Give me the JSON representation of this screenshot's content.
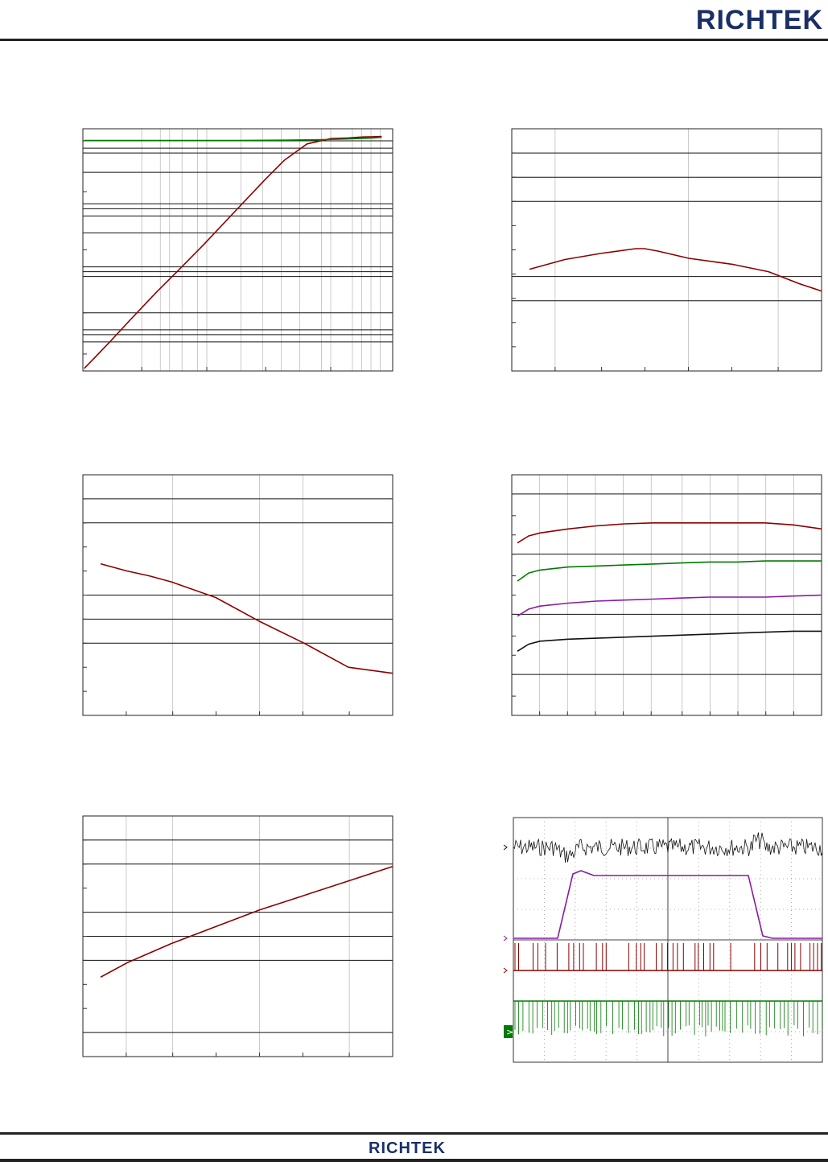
{
  "header": {
    "logo_text": "RICHTEK",
    "logo_color": "#1b2f66"
  },
  "footer": {
    "logo_text": "RICHTEK",
    "logo_color": "#1b2f66"
  },
  "colors": {
    "red": "#8b0000",
    "green": "#007a00",
    "purple": "#8a1aa0",
    "black": "#111111"
  },
  "chart_data": [
    {
      "type": "line",
      "title": "",
      "xlabel": "",
      "ylabel": "",
      "xscale": "log",
      "yscale": "log",
      "xlim": [
        1,
        100
      ],
      "ylim": [
        1,
        100
      ],
      "grid": true,
      "series": [
        {
          "color": "#8b0000",
          "x": [
            1.02,
            1.2,
            1.5,
            2,
            3,
            4,
            6,
            10,
            15,
            20,
            28,
            40,
            52,
            55,
            60,
            65,
            75,
            85
          ],
          "y": [
            1.05,
            1.3,
            1.75,
            2.6,
            4.5,
            6.5,
            11,
            22,
            38,
            55,
            75,
            83,
            84,
            84.5,
            85,
            85.5,
            86,
            86.5
          ]
        },
        {
          "color": "#007a00",
          "x": [
            1.02,
            2,
            4,
            10,
            20,
            30,
            45,
            60,
            75,
            85
          ],
          "y": [
            80,
            80,
            80,
            80,
            80.5,
            81,
            82,
            83,
            84,
            85
          ]
        }
      ]
    },
    {
      "type": "line",
      "title": "",
      "xlabel": "",
      "ylabel": "",
      "xlim": [
        0,
        7
      ],
      "ylim": [
        0,
        10
      ],
      "grid": true,
      "series": [
        {
          "color": "#8b0000",
          "x": [
            0.4,
            1.2,
            2.0,
            2.8,
            3.0,
            3.3,
            4.0,
            5.0,
            5.8,
            6.5,
            7.0
          ],
          "y": [
            4.2,
            4.6,
            4.85,
            5.05,
            5.05,
            4.95,
            4.65,
            4.4,
            4.1,
            3.6,
            3.3
          ]
        }
      ]
    },
    {
      "type": "line",
      "title": "",
      "xlabel": "",
      "ylabel": "",
      "xlim": [
        0,
        7
      ],
      "ylim": [
        0,
        10
      ],
      "grid": true,
      "series": [
        {
          "color": "#8b0000",
          "x": [
            0.4,
            1.0,
            1.5,
            2.0,
            3.0,
            4.0,
            5.0,
            6.0,
            7.0
          ],
          "y": [
            6.3,
            6.0,
            5.8,
            5.55,
            4.9,
            3.9,
            3.0,
            2.0,
            1.75
          ]
        }
      ]
    },
    {
      "type": "line",
      "title": "",
      "xlabel": "",
      "ylabel": "",
      "xlim": [
        0,
        11
      ],
      "ylim": [
        0,
        12
      ],
      "grid": true,
      "series": [
        {
          "color": "#8b0000",
          "x": [
            0.2,
            0.6,
            1,
            2,
            3,
            4,
            5,
            6,
            7,
            8,
            9,
            10,
            11
          ],
          "y": [
            8.6,
            8.95,
            9.1,
            9.3,
            9.45,
            9.55,
            9.6,
            9.6,
            9.6,
            9.6,
            9.6,
            9.5,
            9.3
          ]
        },
        {
          "color": "#007a00",
          "x": [
            0.2,
            0.6,
            1,
            2,
            3,
            4,
            5,
            6,
            7,
            8,
            9,
            10,
            11
          ],
          "y": [
            6.7,
            7.1,
            7.25,
            7.4,
            7.45,
            7.5,
            7.55,
            7.6,
            7.65,
            7.65,
            7.7,
            7.7,
            7.7
          ]
        },
        {
          "color": "#8a1aa0",
          "x": [
            0.2,
            0.6,
            1,
            2,
            3,
            4,
            5,
            6,
            7,
            8,
            9,
            10,
            11
          ],
          "y": [
            4.95,
            5.3,
            5.45,
            5.6,
            5.7,
            5.75,
            5.8,
            5.85,
            5.9,
            5.9,
            5.9,
            5.95,
            6.0
          ]
        },
        {
          "color": "#111111",
          "x": [
            0.2,
            0.6,
            1,
            2,
            3,
            4,
            5,
            6,
            7,
            8,
            9,
            10,
            11
          ],
          "y": [
            3.2,
            3.55,
            3.7,
            3.8,
            3.85,
            3.9,
            3.95,
            4.0,
            4.05,
            4.1,
            4.15,
            4.2,
            4.2
          ]
        }
      ]
    },
    {
      "type": "line",
      "title": "",
      "xlabel": "",
      "ylabel": "",
      "xlim": [
        0,
        7
      ],
      "ylim": [
        0,
        10
      ],
      "grid": true,
      "series": [
        {
          "color": "#8b0000",
          "x": [
            0.4,
            1.0,
            2.0,
            3.0,
            4.0,
            5.0,
            6.0,
            7.0
          ],
          "y": [
            3.3,
            3.9,
            4.7,
            5.4,
            6.1,
            6.7,
            7.3,
            7.9
          ]
        }
      ]
    }
  ],
  "scope": {
    "type": "line",
    "title": "",
    "grid_divisions": {
      "x": 10,
      "y": 8
    },
    "ch1_color": "#111111",
    "ch2_color": "#8a1aa0",
    "ch3_color": "#8b0000",
    "ch4_color": "#007a00",
    "ch4_marker": ">"
  }
}
